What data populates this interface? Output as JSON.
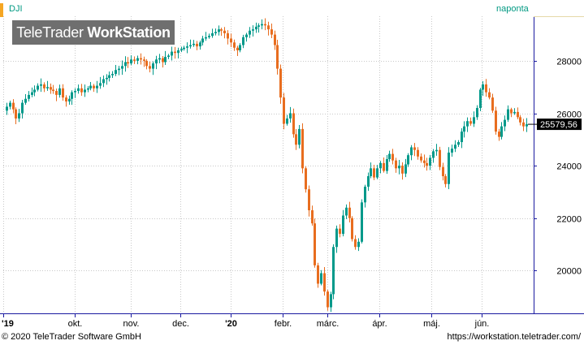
{
  "header": {
    "symbol": "DJI",
    "interval": "naponta",
    "watermark_brand": "TeleTrader",
    "watermark_product": "WorkStation"
  },
  "footer": {
    "copyright": "© 2020 TeleTrader Software GmbH",
    "website": "https://workstation.teletrader.com/"
  },
  "colors": {
    "up": "#00998a",
    "down": "#e86d1f",
    "accent_bar": "#f5a623",
    "last_price_bg": "#000000",
    "grid": "#c8c8c8",
    "axis": "#1a1aa0"
  },
  "chart_data": {
    "type": "candlestick",
    "title": "DJI",
    "interval": "naponta",
    "x_tick_labels": [
      "'19",
      "okt.",
      "nov.",
      "dec.",
      "'20",
      "febr.",
      "márc.",
      "ápr.",
      "máj.",
      "jún."
    ],
    "y_tick_labels": [
      "20000",
      "22000",
      "24000",
      "26000",
      "28000"
    ],
    "y_ticks": [
      20000,
      22000,
      24000,
      26000,
      28000
    ],
    "ylim": [
      18400,
      29700
    ],
    "last_price": 25579.56,
    "last_price_label": "25579,56",
    "grid": true,
    "close_series": [
      26250,
      26400,
      26150,
      25800,
      26000,
      26400,
      26550,
      26700,
      26800,
      26900,
      27050,
      27100,
      26950,
      27000,
      26900,
      26850,
      26700,
      26950,
      26600,
      26450,
      26550,
      26800,
      26850,
      26950,
      26800,
      26900,
      26950,
      27050,
      26950,
      27050,
      27150,
      27300,
      27350,
      27450,
      27500,
      27650,
      27700,
      27800,
      27950,
      27900,
      28050,
      28000,
      28100,
      28050,
      28000,
      27800,
      27700,
      27900,
      28050,
      28100,
      27950,
      28150,
      28200,
      28350,
      28300,
      28400,
      28450,
      28500,
      28550,
      28600,
      28650,
      28550,
      28700,
      28850,
      28900,
      28950,
      29050,
      29100,
      29200,
      29150,
      29050,
      28850,
      28700,
      28500,
      28400,
      28600,
      28900,
      29000,
      29150,
      29200,
      29300,
      29350,
      29400,
      29350,
      29200,
      29000,
      28600,
      27700,
      26600,
      25600,
      25800,
      26000,
      25200,
      24800,
      25400,
      23900,
      23100,
      22300,
      21800,
      20200,
      19500,
      19900,
      19200,
      18600,
      19100,
      20900,
      21600,
      21400,
      22100,
      22400,
      22000,
      21200,
      20900,
      21100,
      22600,
      23200,
      23600,
      23900,
      23550,
      23900,
      24100,
      23800,
      24250,
      24450,
      24200,
      23900,
      24000,
      23700,
      24050,
      24400,
      24700,
      24600,
      24350,
      24200,
      24100,
      24000,
      24300,
      24550,
      24600,
      23950,
      23600,
      23300,
      24500,
      24650,
      24800,
      24900,
      25300,
      25500,
      25700,
      25600,
      25850,
      26200,
      26900,
      27100,
      26800,
      26600,
      26100,
      25300,
      25100,
      25500,
      25750,
      26150,
      26000,
      26050,
      25850,
      25650,
      25500,
      25580
    ]
  }
}
